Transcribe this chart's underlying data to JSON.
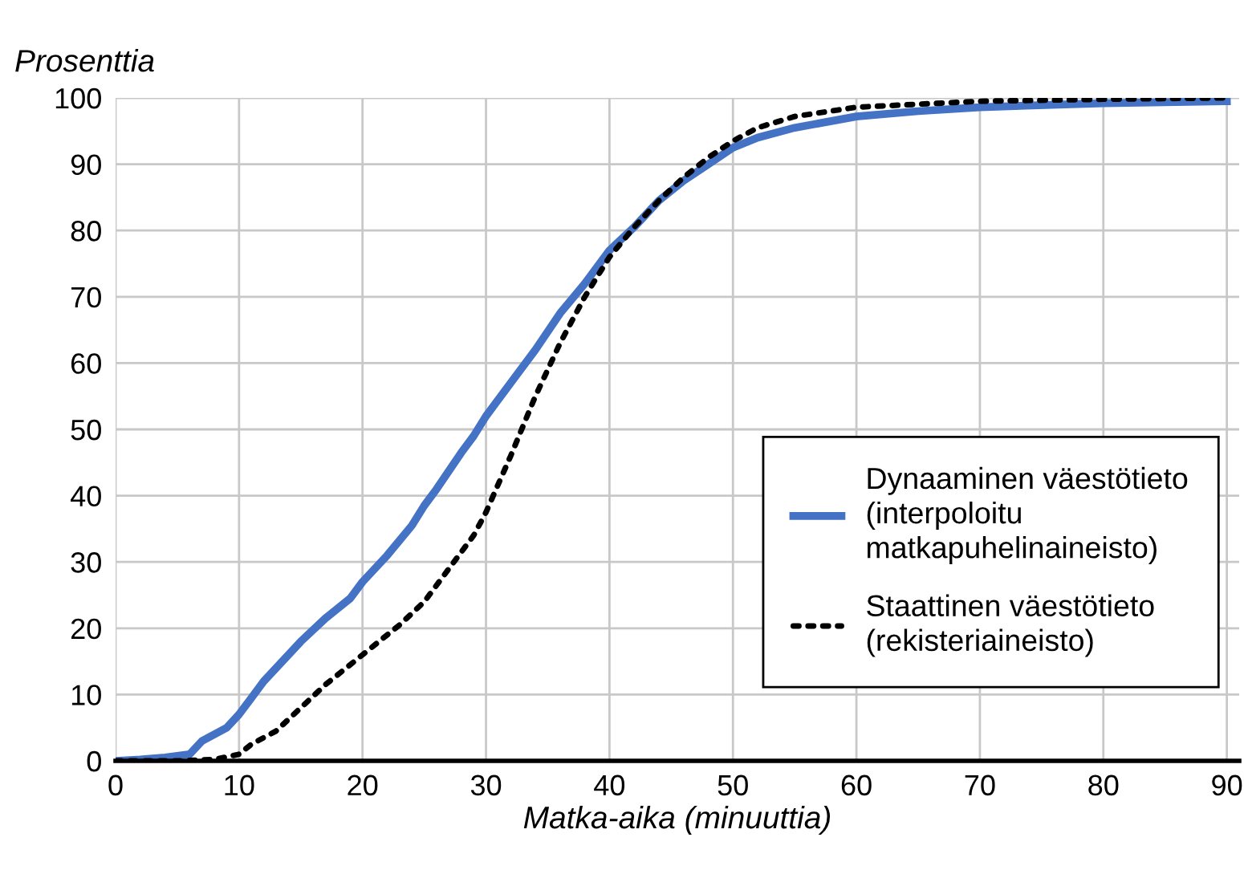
{
  "chart_data": {
    "type": "line",
    "ylabel": "Prosenttia",
    "xlabel": "Matka-aika (minuuttia)",
    "xlim": [
      0,
      91
    ],
    "ylim": [
      0,
      100
    ],
    "xticks": [
      0,
      10,
      20,
      30,
      40,
      50,
      60,
      70,
      80,
      90
    ],
    "yticks": [
      0,
      10,
      20,
      30,
      40,
      50,
      60,
      70,
      80,
      90,
      100
    ],
    "grid": true,
    "legend": "right",
    "series": [
      {
        "name": "Dynaaminen väestötieto\n(interpoloitu\nmatkapuhelinaineisto)",
        "color": "#4472c4",
        "line_style": "solid",
        "x": [
          0,
          2,
          4,
          6,
          7,
          8,
          9,
          10,
          11,
          12,
          13,
          15,
          17,
          19,
          20,
          22,
          24,
          25,
          26,
          28,
          29,
          30,
          32,
          34,
          36,
          38,
          40,
          42,
          44,
          46,
          48,
          50,
          52,
          55,
          60,
          65,
          70,
          80,
          90
        ],
        "values": [
          0,
          0.2,
          0.5,
          1,
          3,
          4,
          5,
          7,
          9.5,
          12,
          14,
          18,
          21.5,
          24.5,
          27,
          31,
          35.5,
          38.5,
          41,
          46.5,
          49,
          52,
          57,
          62,
          67.5,
          72,
          77,
          80.5,
          84.5,
          87.5,
          90,
          92.5,
          94,
          95.5,
          97.2,
          98,
          98.6,
          99.2,
          99.5
        ]
      },
      {
        "name": "Staattinen väestötieto\n(rekisteriaineisto)",
        "color": "#000000",
        "line_style": "dotted",
        "x": [
          0,
          5,
          8,
          10,
          11,
          13,
          15,
          17,
          20,
          23,
          25,
          27,
          29,
          30,
          32,
          34,
          36,
          38,
          40,
          42,
          44,
          46,
          48,
          50,
          52,
          55,
          60,
          70,
          80,
          90
        ],
        "values": [
          0,
          0,
          0.2,
          1,
          2.5,
          4.5,
          8,
          11.5,
          16,
          20.5,
          24,
          29,
          34,
          37.5,
          46,
          55,
          63,
          70,
          76,
          80.5,
          84.5,
          88,
          91,
          93.5,
          95.5,
          97.2,
          98.6,
          99.5,
          99.8,
          100
        ]
      }
    ]
  }
}
